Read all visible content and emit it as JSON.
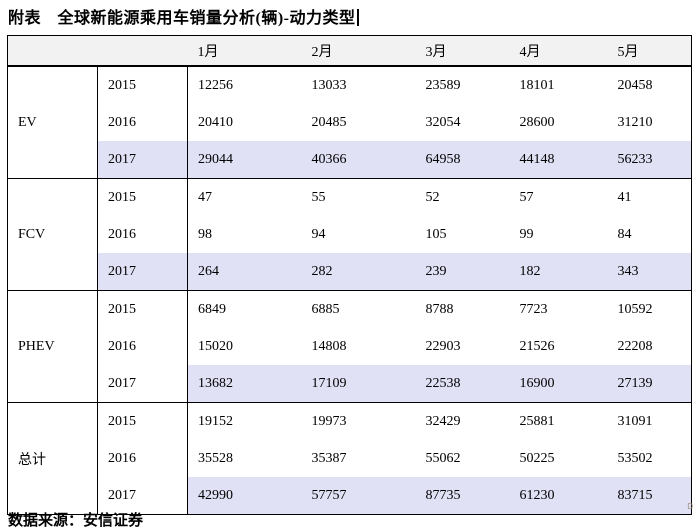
{
  "title": "附表　全球新能源乘用车销量分析(辆)-动力类型",
  "source": "数据来源：安信证券",
  "corner_mark": "D",
  "colors": {
    "highlight": "#e1e1f6",
    "header_bg": "#f2f2f2",
    "border": "#000000"
  },
  "table": {
    "months": [
      "1月",
      "2月",
      "3月",
      "4月",
      "5月"
    ],
    "groups": [
      {
        "category": "EV",
        "rows": [
          {
            "year": "2015",
            "values": [
              "12256",
              "13033",
              "23589",
              "18101",
              "20458"
            ],
            "highlight": false,
            "year_highlight": false
          },
          {
            "year": "2016",
            "values": [
              "20410",
              "20485",
              "32054",
              "28600",
              "31210"
            ],
            "highlight": false,
            "year_highlight": false
          },
          {
            "year": "2017",
            "values": [
              "29044",
              "40366",
              "64958",
              "44148",
              "56233"
            ],
            "highlight": true,
            "year_highlight": true
          }
        ]
      },
      {
        "category": "FCV",
        "rows": [
          {
            "year": "2015",
            "values": [
              "47",
              "55",
              "52",
              "57",
              "41"
            ],
            "highlight": false,
            "year_highlight": false
          },
          {
            "year": "2016",
            "values": [
              "98",
              "94",
              "105",
              "99",
              "84"
            ],
            "highlight": false,
            "year_highlight": false
          },
          {
            "year": "2017",
            "values": [
              "264",
              "282",
              "239",
              "182",
              "343"
            ],
            "highlight": true,
            "year_highlight": true
          }
        ]
      },
      {
        "category": "PHEV",
        "rows": [
          {
            "year": "2015",
            "values": [
              "6849",
              "6885",
              "8788",
              "7723",
              "10592"
            ],
            "highlight": false,
            "year_highlight": false
          },
          {
            "year": "2016",
            "values": [
              "15020",
              "14808",
              "22903",
              "21526",
              "22208"
            ],
            "highlight": false,
            "year_highlight": false
          },
          {
            "year": "2017",
            "values": [
              "13682",
              "17109",
              "22538",
              "16900",
              "27139"
            ],
            "highlight": true,
            "year_highlight": false
          }
        ]
      },
      {
        "category": "总计",
        "rows": [
          {
            "year": "2015",
            "values": [
              "19152",
              "19973",
              "32429",
              "25881",
              "31091"
            ],
            "highlight": false,
            "year_highlight": false
          },
          {
            "year": "2016",
            "values": [
              "35528",
              "35387",
              "55062",
              "50225",
              "53502"
            ],
            "highlight": false,
            "year_highlight": false
          },
          {
            "year": "2017",
            "values": [
              "42990",
              "57757",
              "87735",
              "61230",
              "83715"
            ],
            "highlight": true,
            "year_highlight": false
          }
        ]
      }
    ]
  }
}
